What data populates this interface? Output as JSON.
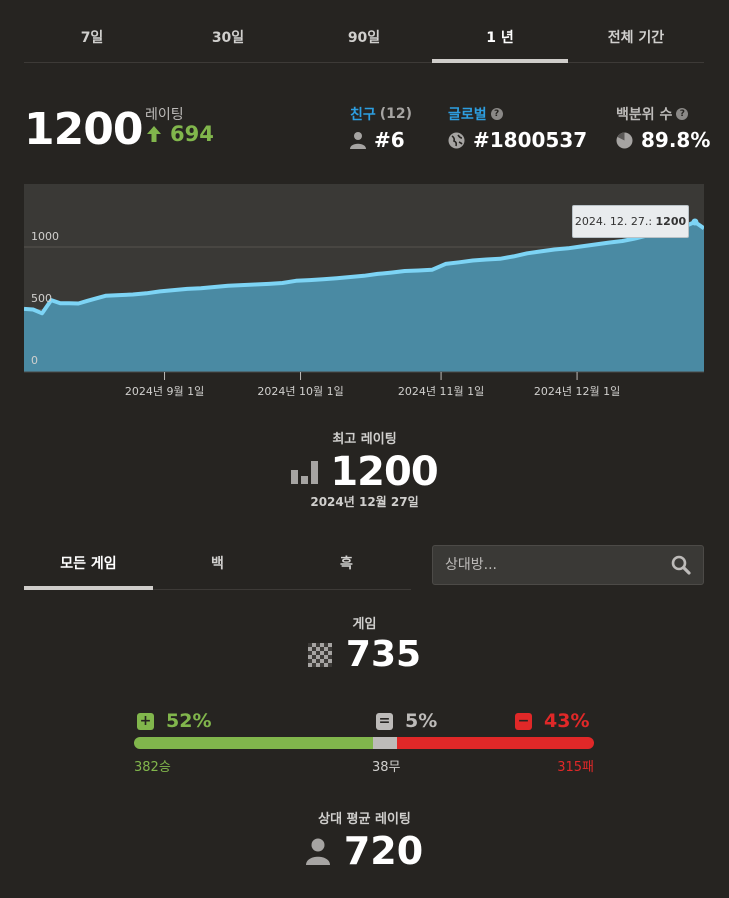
{
  "period_tabs": [
    {
      "label": "7일"
    },
    {
      "label": "30일"
    },
    {
      "label": "90일"
    },
    {
      "label": "1 년",
      "active": true
    },
    {
      "label": "전체 기간"
    }
  ],
  "rating": {
    "value": "1200",
    "label": "레이팅",
    "change": "694"
  },
  "friends": {
    "label": "친구",
    "count": "(12)",
    "rank": "#6"
  },
  "global": {
    "label": "글로벌",
    "rank": "#1800537"
  },
  "percentile": {
    "label": "백분위 수",
    "value": "89.8%"
  },
  "chart_data": {
    "type": "area",
    "y_ticks": [
      "1000",
      "500",
      "0"
    ],
    "ylim": [
      0,
      1500
    ],
    "x_ticks": [
      {
        "label": "2024년 9월 1일",
        "date": "2024-09-01"
      },
      {
        "label": "2024년 10월 1일",
        "date": "2024-10-01"
      },
      {
        "label": "2024년 11월 1일",
        "date": "2024-11-01"
      },
      {
        "label": "2024년 12월 1일",
        "date": "2024-12-01"
      }
    ],
    "xlim": [
      "2024-08-01",
      "2024-12-29"
    ],
    "points": [
      [
        "2024-08-01",
        505
      ],
      [
        "2024-08-03",
        500
      ],
      [
        "2024-08-05",
        470
      ],
      [
        "2024-08-07",
        575
      ],
      [
        "2024-08-09",
        550
      ],
      [
        "2024-08-11",
        550
      ],
      [
        "2024-08-13",
        548
      ],
      [
        "2024-08-15",
        570
      ],
      [
        "2024-08-17",
        590
      ],
      [
        "2024-08-19",
        610
      ],
      [
        "2024-08-22",
        615
      ],
      [
        "2024-08-25",
        620
      ],
      [
        "2024-08-28",
        630
      ],
      [
        "2024-08-31",
        645
      ],
      [
        "2024-09-03",
        655
      ],
      [
        "2024-09-06",
        665
      ],
      [
        "2024-09-09",
        670
      ],
      [
        "2024-09-12",
        680
      ],
      [
        "2024-09-15",
        690
      ],
      [
        "2024-09-18",
        695
      ],
      [
        "2024-09-21",
        700
      ],
      [
        "2024-09-24",
        705
      ],
      [
        "2024-09-27",
        712
      ],
      [
        "2024-09-30",
        730
      ],
      [
        "2024-10-03",
        735
      ],
      [
        "2024-10-06",
        742
      ],
      [
        "2024-10-09",
        750
      ],
      [
        "2024-10-12",
        760
      ],
      [
        "2024-10-15",
        770
      ],
      [
        "2024-10-18",
        785
      ],
      [
        "2024-10-21",
        795
      ],
      [
        "2024-10-24",
        808
      ],
      [
        "2024-10-27",
        812
      ],
      [
        "2024-10-30",
        818
      ],
      [
        "2024-11-02",
        865
      ],
      [
        "2024-11-05",
        878
      ],
      [
        "2024-11-08",
        892
      ],
      [
        "2024-11-11",
        900
      ],
      [
        "2024-11-14",
        906
      ],
      [
        "2024-11-17",
        925
      ],
      [
        "2024-11-20",
        950
      ],
      [
        "2024-11-23",
        965
      ],
      [
        "2024-11-26",
        980
      ],
      [
        "2024-11-29",
        990
      ],
      [
        "2024-12-02",
        1005
      ],
      [
        "2024-12-05",
        1020
      ],
      [
        "2024-12-08",
        1035
      ],
      [
        "2024-12-11",
        1048
      ],
      [
        "2024-12-14",
        1070
      ],
      [
        "2024-12-17",
        1098
      ],
      [
        "2024-12-20",
        1130
      ],
      [
        "2024-12-23",
        1150
      ],
      [
        "2024-12-25",
        1170
      ],
      [
        "2024-12-27",
        1200
      ],
      [
        "2024-12-29",
        1150
      ]
    ],
    "tooltip": {
      "date": "2024. 12. 27.:",
      "value": "1200"
    },
    "grid": true
  },
  "best_rating": {
    "label": "최고 레이팅",
    "value": "1200",
    "date": "2024년 12월 27일"
  },
  "color_tabs": [
    {
      "label": "모든 게임",
      "active": true
    },
    {
      "label": "백"
    },
    {
      "label": "흑"
    }
  ],
  "search": {
    "placeholder": "상대방..."
  },
  "games": {
    "label": "게임",
    "value": "735"
  },
  "results": {
    "win_pct": "52%",
    "draw_pct": "5%",
    "loss_pct": "43%",
    "win_count": "382승",
    "draw_count": "38무",
    "loss_count": "315패",
    "wins": 382,
    "draws": 38,
    "losses": 315
  },
  "opponent": {
    "label": "상대 평균 레이팅",
    "value": "720"
  },
  "colors": {
    "win": "#81b64c",
    "draw": "#bdbbb9",
    "loss": "#e02828",
    "line": "#7dd4f5",
    "area": "#4a8aa3",
    "friend": "#2d9ee0"
  }
}
